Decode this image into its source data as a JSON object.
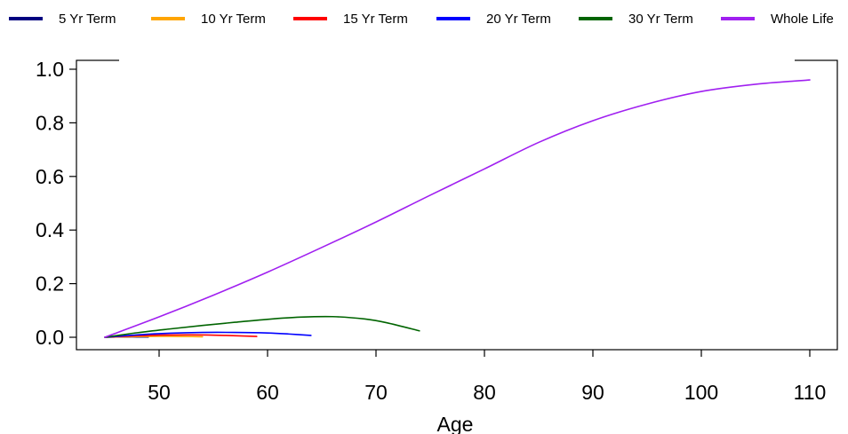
{
  "chart_data": {
    "type": "line",
    "title": "",
    "xlabel": "Age",
    "ylabel": "",
    "xlim": [
      45,
      110
    ],
    "ylim": [
      0,
      1
    ],
    "grid": false,
    "legend_position": "top",
    "x_ticks": [
      {
        "value": 50,
        "label": "50"
      },
      {
        "value": 60,
        "label": "60"
      },
      {
        "value": 70,
        "label": "70"
      },
      {
        "value": 80,
        "label": "80"
      },
      {
        "value": 90,
        "label": "90"
      },
      {
        "value": 100,
        "label": "100"
      },
      {
        "value": 110,
        "label": "110"
      }
    ],
    "y_ticks": [
      {
        "value": 0.0,
        "label": "0.0"
      },
      {
        "value": 0.2,
        "label": "0.2"
      },
      {
        "value": 0.4,
        "label": "0.4"
      },
      {
        "value": 0.6,
        "label": "0.6"
      },
      {
        "value": 0.8,
        "label": "0.8"
      },
      {
        "value": 1.0,
        "label": "1.0"
      }
    ],
    "series": [
      {
        "name": "5 Yr Term",
        "color": "#000080",
        "x": [
          45,
          46,
          47,
          48,
          49
        ],
        "y": [
          0.0,
          0.0008,
          0.0012,
          0.0012,
          0.0008
        ]
      },
      {
        "name": "10 Yr Term",
        "color": "#FFA500",
        "x": [
          45,
          47,
          49,
          51,
          53,
          54
        ],
        "y": [
          0.0,
          0.002,
          0.003,
          0.0035,
          0.0025,
          0.002
        ]
      },
      {
        "name": "15 Yr Term",
        "color": "#FF0000",
        "x": [
          45,
          47,
          50,
          53,
          56,
          59
        ],
        "y": [
          0.0,
          0.004,
          0.008,
          0.009,
          0.007,
          0.003
        ]
      },
      {
        "name": "20 Yr Term",
        "color": "#0000FF",
        "x": [
          45,
          48,
          51,
          54,
          57,
          60,
          62,
          64
        ],
        "y": [
          0.0,
          0.009,
          0.015,
          0.018,
          0.018,
          0.016,
          0.012,
          0.007
        ]
      },
      {
        "name": "30 Yr Term",
        "color": "#006400",
        "x": [
          45,
          48,
          51,
          54,
          57,
          60,
          63,
          66,
          69,
          71,
          74
        ],
        "y": [
          0.0,
          0.017,
          0.031,
          0.044,
          0.056,
          0.067,
          0.075,
          0.077,
          0.068,
          0.054,
          0.024
        ]
      },
      {
        "name": "Whole Life",
        "color": "#A020F0",
        "x": [
          45,
          50,
          55,
          60,
          65,
          70,
          75,
          80,
          85,
          90,
          95,
          100,
          105,
          110
        ],
        "y": [
          0.0,
          0.076,
          0.157,
          0.243,
          0.335,
          0.43,
          0.53,
          0.628,
          0.727,
          0.808,
          0.87,
          0.917,
          0.944,
          0.96
        ]
      }
    ]
  }
}
